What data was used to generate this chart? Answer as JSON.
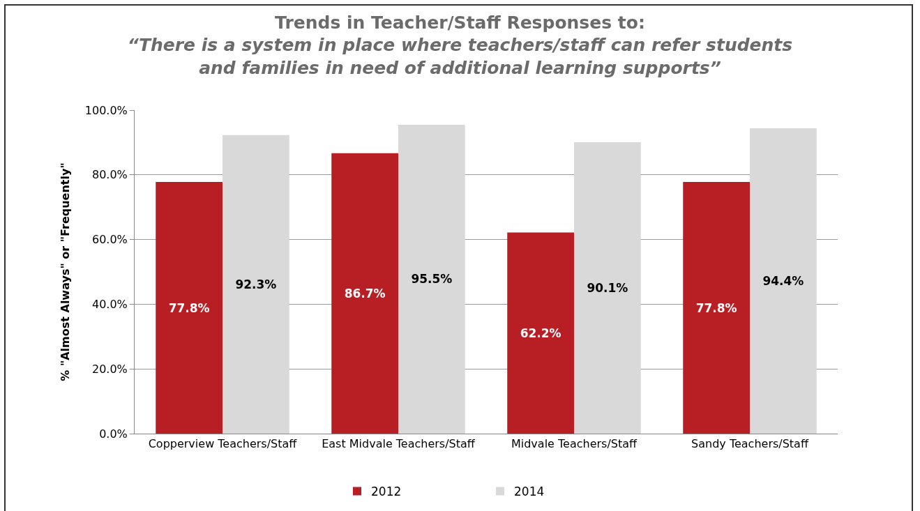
{
  "chart_data": {
    "type": "bar",
    "title": "Trends in Teacher/Staff Responses to:",
    "subtitle": "“There is a system in place where teachers/staff can refer students and families in need of additional learning supports”",
    "ylabel": "% \"Almost Always\" or \"Frequently\"",
    "categories": [
      "Copperview Teachers/Staff",
      "East Midvale Teachers/Staff",
      "Midvale Teachers/Staff",
      "Sandy Teachers/Staff"
    ],
    "series": [
      {
        "name": "2012",
        "color": "#b81f24",
        "values": [
          77.8,
          86.7,
          62.2,
          77.8
        ],
        "value_labels": [
          "77.8%",
          "86.7%",
          "62.2%",
          "77.8%"
        ]
      },
      {
        "name": "2014",
        "color": "#d9d9d9",
        "values": [
          92.3,
          95.5,
          90.1,
          94.4
        ],
        "value_labels": [
          "92.3%",
          "95.5%",
          "90.1%",
          "94.4%"
        ]
      }
    ],
    "ylim": [
      0,
      100
    ],
    "yticks": [
      {
        "value": 0,
        "label": "0.0%"
      },
      {
        "value": 20,
        "label": "20.0%"
      },
      {
        "value": 40,
        "label": "40.0%"
      },
      {
        "value": 60,
        "label": "60.0%"
      },
      {
        "value": 80,
        "label": "80.0%"
      },
      {
        "value": 100,
        "label": "100.0%"
      }
    ],
    "grid": "y",
    "legend": "bottom"
  }
}
